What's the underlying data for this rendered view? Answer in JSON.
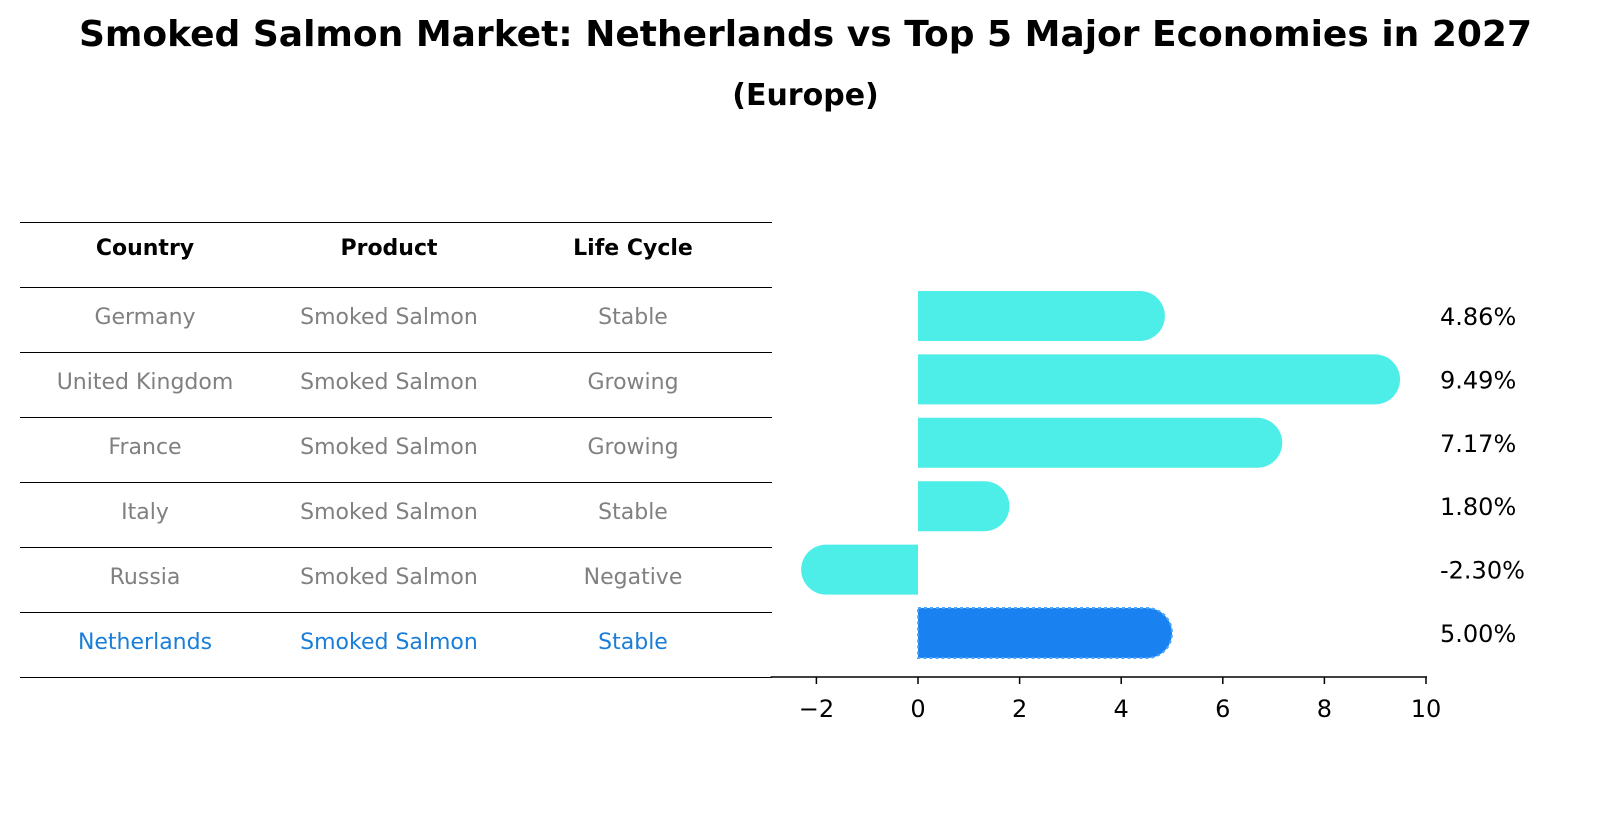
{
  "title": "Smoked Salmon Market: Netherlands vs Top 5 Major Economies in 2027",
  "subtitle": "(Europe)",
  "table": {
    "headers": [
      "Country",
      "Product",
      "Life Cycle"
    ],
    "rows": [
      [
        "Germany",
        "Smoked Salmon",
        "Stable"
      ],
      [
        "United Kingdom",
        "Smoked Salmon",
        "Growing"
      ],
      [
        "France",
        "Smoked Salmon",
        "Growing"
      ],
      [
        "Italy",
        "Smoked Salmon",
        "Stable"
      ],
      [
        "Russia",
        "Smoked Salmon",
        "Negative"
      ],
      [
        "Netherlands",
        "Smoked Salmon",
        "Stable"
      ]
    ],
    "highlight_row": 5,
    "highlight_color": "#1a7ed8",
    "text_color": "#808080"
  },
  "chart_data": {
    "type": "bar",
    "orientation": "horizontal",
    "categories": [
      "Germany",
      "United Kingdom",
      "France",
      "Italy",
      "Russia",
      "Netherlands"
    ],
    "values": [
      4.86,
      9.49,
      7.17,
      1.8,
      -2.3,
      5.0
    ],
    "value_labels": [
      "4.86%",
      "9.49%",
      "7.17%",
      "1.80%",
      "-2.30%",
      "5.00%"
    ],
    "xlim": [
      -2.9,
      10
    ],
    "xticks": [
      -2,
      0,
      2,
      4,
      6,
      8,
      10
    ],
    "xtick_labels": [
      "−2",
      "0",
      "2",
      "4",
      "6",
      "8",
      "10"
    ],
    "bar_color": "#4dede8",
    "highlight_color": "#1a82f0",
    "highlight_index": 5,
    "title": "",
    "xlabel": "",
    "ylabel": ""
  }
}
